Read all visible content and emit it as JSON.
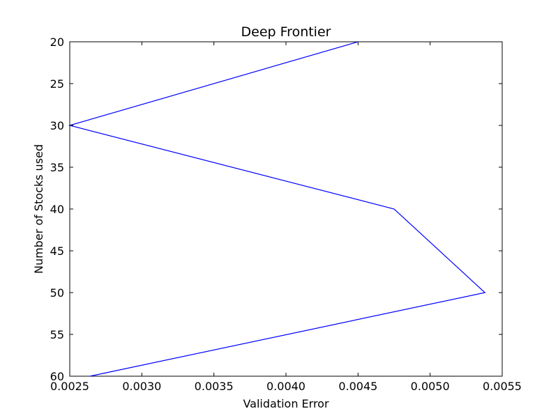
{
  "chart_data": {
    "type": "line",
    "title": "Deep Frontier",
    "xlabel": "Validation Error",
    "ylabel": "Number of Stocks used",
    "xlim": [
      0.0025,
      0.0055
    ],
    "ylim": [
      20,
      60
    ],
    "y_inverted": true,
    "grid": false,
    "x_ticks": [
      "0.0025",
      "0.0030",
      "0.0035",
      "0.0040",
      "0.0045",
      "0.0050",
      "0.0055"
    ],
    "y_ticks": [
      "20",
      "25",
      "30",
      "35",
      "40",
      "45",
      "50",
      "55",
      "60"
    ],
    "series": [
      {
        "color": "#0000ff",
        "points": [
          {
            "x": 0.0045,
            "y": 20
          },
          {
            "x": 0.0025,
            "y": 30
          },
          {
            "x": 0.00475,
            "y": 40
          },
          {
            "x": 0.00538,
            "y": 50
          },
          {
            "x": 0.00264,
            "y": 60
          }
        ]
      }
    ]
  }
}
